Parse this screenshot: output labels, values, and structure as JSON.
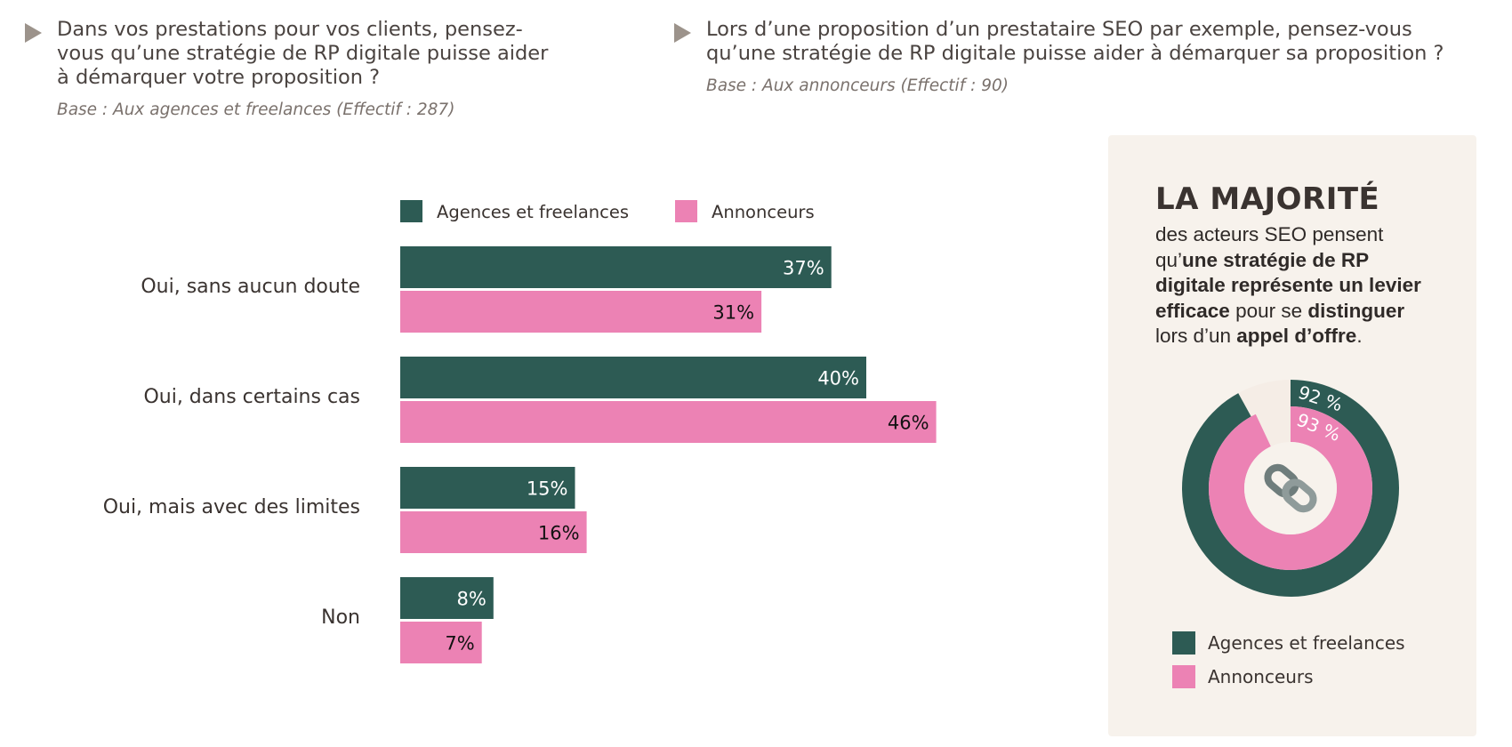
{
  "questions": {
    "q1": {
      "text": "Dans vos prestations pour vos clients, pensez-\nvous qu’une stratégie de RP digitale puisse aider\nà démarquer votre proposition ?",
      "base": "Base : Aux agences et freelances (Effectif : 287)"
    },
    "q2": {
      "text": "Lors d’une proposition d’un prestataire SEO par exemple, pensez-vous\nqu’une stratégie de RP digitale puisse aider à démarquer sa proposition ?",
      "base": "Base : Aux annonceurs (Effectif : 90)"
    }
  },
  "colors": {
    "agences": "#2d5b54",
    "annonceurs": "#ec82b4",
    "panel_bg": "#f7f2ec",
    "remainder": "#f5ede6"
  },
  "chart_data": [
    {
      "type": "bar",
      "orientation": "horizontal",
      "categories": [
        "Oui, sans aucun doute",
        "Oui, dans certains cas",
        "Oui, mais avec des limites",
        "Non"
      ],
      "series": [
        {
          "name": "Agences et freelances",
          "values": [
            37,
            40,
            15,
            8
          ],
          "labels": [
            "37%",
            "40%",
            "15%",
            "8%"
          ]
        },
        {
          "name": "Annonceurs",
          "values": [
            31,
            46,
            16,
            7
          ],
          "labels": [
            "31%",
            "46%",
            "16%",
            "7%"
          ]
        }
      ],
      "xlim": [
        0,
        50
      ],
      "legend": "top"
    },
    {
      "type": "pie",
      "subtype": "nested-donut",
      "series": [
        {
          "name": "Agences et freelances",
          "value": 92,
          "label": "92 %"
        },
        {
          "name": "Annonceurs",
          "value": 93,
          "label": "93 %"
        }
      ]
    }
  ],
  "panel": {
    "title": "LA MAJORITÉ",
    "line1": "des acteurs SEO pensent",
    "line2_pre": "qu’",
    "line2_bold": "une stratégie de RP",
    "line3_bold": "digitale représente un levier",
    "line4_bold": "efficace",
    "line4_mid": " pour se ",
    "line4_bold2": "distinguer",
    "line5_pre": "lors d’un ",
    "line5_bold": "appel d’offre",
    "line5_post": ".",
    "center_icon": "chain-link-icon",
    "legend": [
      "Agences et freelances",
      "Annonceurs"
    ]
  }
}
